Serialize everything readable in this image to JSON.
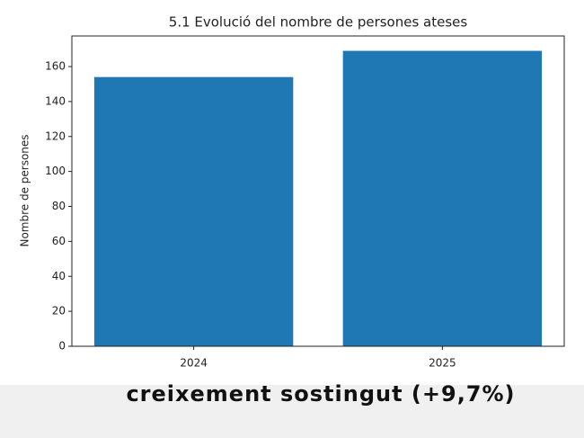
{
  "chart_data": {
    "type": "bar",
    "title": "5.1 Evolució del nombre de persones ateses",
    "ylabel": "Nombre de persones",
    "categories": [
      "2024",
      "2025"
    ],
    "values": [
      154,
      169
    ],
    "color": "#1f77b4",
    "ylim": [
      0,
      177.5
    ],
    "yticks": [
      0,
      20,
      40,
      60,
      80,
      100,
      120,
      140,
      160
    ],
    "grid": false
  },
  "caption": "creixement sostingut (+9,7%)"
}
